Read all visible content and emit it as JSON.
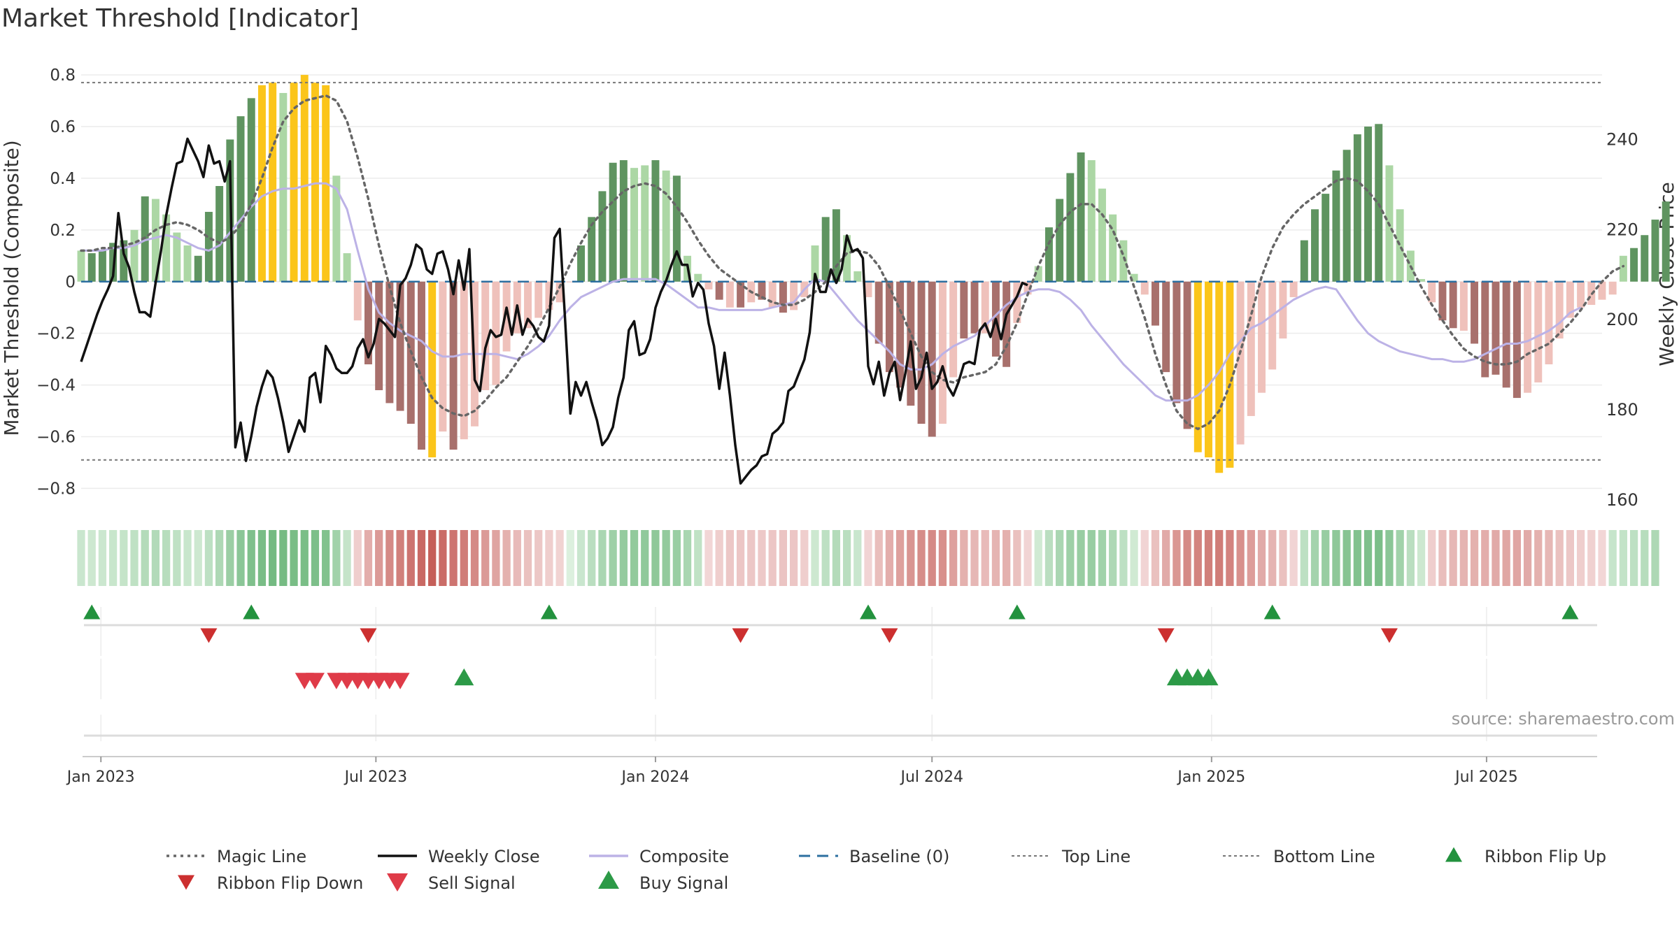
{
  "title": "Market Threshold [Indicator]",
  "source": "source: sharemaestro.com",
  "colors": {
    "bar_pos_strong": "#5f9460",
    "bar_pos_light": "#acd7a5",
    "bar_neg_strong": "#a8706c",
    "bar_neg_light": "#efc1bb",
    "bar_extreme": "#fbc51a",
    "close": "#111111",
    "composite": "#bcb2e6",
    "magic": "#666666",
    "baseline": "#2c6fa0",
    "threshold": "#777777",
    "flip_up": "#23923e",
    "flip_down": "#cc2f2f",
    "sell": "#df3b48",
    "buy": "#2c9a47",
    "grid": "#ececec",
    "axis_text": "#333333"
  },
  "chart_data": {
    "type": "bar",
    "title": "Market Threshold [Indicator]",
    "ylabel": "Market Threshold (Composite)",
    "y2label": "Weekly Close Price",
    "ylim": [
      -0.88,
      0.83
    ],
    "y2lim": [
      157.8,
      255.9
    ],
    "y_ticks": [
      0.8,
      0.6,
      0.4,
      0.2,
      0,
      -0.2,
      -0.4,
      -0.6,
      -0.8
    ],
    "y_tick_labels": [
      "0.8",
      "0.6",
      "0.4",
      "0.2",
      "0",
      "−0.2",
      "−0.4",
      "−0.6",
      "−0.8"
    ],
    "y2_ticks": [
      240,
      220,
      200,
      180,
      160
    ],
    "top_line": 0.77,
    "bottom_line": -0.69,
    "baseline": 0,
    "x_start": "2022-12-19",
    "x_end": "2025-09-15",
    "x_ticks": [
      {
        "date": "2023-01-01",
        "label": "Jan 2023"
      },
      {
        "date": "2023-07-01",
        "label": "Jul 2023"
      },
      {
        "date": "2024-01-01",
        "label": "Jan 2024"
      },
      {
        "date": "2024-07-01",
        "label": "Jul 2024"
      },
      {
        "date": "2025-01-01",
        "label": "Jan 2025"
      },
      {
        "date": "2025-07-01",
        "label": "Jul 2025"
      }
    ],
    "bar_values": [
      0.12,
      0.11,
      0.12,
      0.15,
      0.16,
      0.2,
      0.33,
      0.32,
      0.26,
      0.19,
      0.14,
      0.1,
      0.27,
      0.37,
      0.55,
      0.64,
      0.71,
      0.76,
      0.77,
      0.73,
      0.77,
      0.8,
      0.77,
      0.76,
      0.41,
      0.11,
      -0.15,
      -0.32,
      -0.42,
      -0.47,
      -0.5,
      -0.55,
      -0.65,
      -0.68,
      -0.58,
      -0.65,
      -0.61,
      -0.56,
      -0.42,
      -0.4,
      -0.27,
      -0.2,
      -0.18,
      -0.14,
      -0.11,
      -0.08,
      0.0,
      0.14,
      0.25,
      0.35,
      0.46,
      0.47,
      0.44,
      0.45,
      0.47,
      0.43,
      0.41,
      0.1,
      0.03,
      -0.03,
      -0.07,
      -0.1,
      -0.1,
      -0.08,
      -0.07,
      -0.1,
      -0.12,
      -0.11,
      -0.06,
      0.14,
      0.25,
      0.28,
      0.18,
      0.04,
      -0.06,
      -0.24,
      -0.35,
      -0.41,
      -0.48,
      -0.55,
      -0.6,
      -0.55,
      -0.37,
      -0.22,
      -0.2,
      -0.2,
      -0.29,
      -0.33,
      -0.16,
      -0.05,
      0.06,
      0.21,
      0.32,
      0.42,
      0.5,
      0.47,
      0.36,
      0.26,
      0.16,
      0.03,
      -0.05,
      -0.17,
      -0.35,
      -0.47,
      -0.57,
      -0.66,
      -0.68,
      -0.74,
      -0.72,
      -0.63,
      -0.52,
      -0.43,
      -0.34,
      -0.22,
      -0.06,
      0.16,
      0.28,
      0.34,
      0.43,
      0.51,
      0.57,
      0.6,
      0.61,
      0.45,
      0.28,
      0.12,
      0.01,
      -0.08,
      -0.15,
      -0.18,
      -0.19,
      -0.24,
      -0.37,
      -0.36,
      -0.41,
      -0.45,
      -0.43,
      -0.39,
      -0.32,
      -0.22,
      -0.14,
      -0.1,
      -0.09,
      -0.07,
      -0.05,
      0.1,
      0.13,
      0.18,
      0.24,
      0.31
    ],
    "bar_colors": [
      "bar_pos_light",
      "bar_pos_strong",
      "bar_pos_strong",
      "bar_pos_strong",
      "bar_pos_strong",
      "bar_pos_light",
      "bar_pos_strong",
      "bar_pos_light",
      "bar_pos_light",
      "bar_pos_light",
      "bar_pos_light",
      "bar_pos_strong",
      "bar_pos_strong",
      "bar_pos_strong",
      "bar_pos_strong",
      "bar_pos_strong",
      "bar_pos_strong",
      "bar_extreme",
      "bar_extreme",
      "bar_pos_light",
      "bar_extreme",
      "bar_extreme",
      "bar_extreme",
      "bar_extreme",
      "bar_pos_light",
      "bar_pos_light",
      "bar_neg_light",
      "bar_neg_strong",
      "bar_neg_strong",
      "bar_neg_strong",
      "bar_neg_strong",
      "bar_neg_strong",
      "bar_neg_strong",
      "bar_extreme",
      "bar_neg_light",
      "bar_neg_strong",
      "bar_neg_light",
      "bar_neg_light",
      "bar_neg_light",
      "bar_neg_light",
      "bar_neg_light",
      "bar_neg_light",
      "bar_neg_light",
      "bar_neg_light",
      "bar_neg_light",
      "bar_neg_light",
      "bar_neg_light",
      "bar_pos_strong",
      "bar_pos_strong",
      "bar_pos_strong",
      "bar_pos_strong",
      "bar_pos_strong",
      "bar_pos_light",
      "bar_pos_light",
      "bar_pos_strong",
      "bar_pos_light",
      "bar_pos_strong",
      "bar_pos_light",
      "bar_pos_light",
      "bar_neg_light",
      "bar_neg_strong",
      "bar_neg_light",
      "bar_neg_strong",
      "bar_neg_light",
      "bar_neg_strong",
      "bar_neg_light",
      "bar_neg_strong",
      "bar_neg_light",
      "bar_neg_light",
      "bar_pos_light",
      "bar_pos_strong",
      "bar_pos_strong",
      "bar_pos_light",
      "bar_pos_light",
      "bar_neg_light",
      "bar_neg_strong",
      "bar_neg_strong",
      "bar_neg_strong",
      "bar_neg_strong",
      "bar_neg_strong",
      "bar_neg_strong",
      "bar_neg_light",
      "bar_neg_light",
      "bar_neg_strong",
      "bar_neg_strong",
      "bar_neg_light",
      "bar_neg_strong",
      "bar_neg_strong",
      "bar_neg_light",
      "bar_neg_light",
      "bar_pos_light",
      "bar_pos_strong",
      "bar_pos_strong",
      "bar_pos_strong",
      "bar_pos_strong",
      "bar_pos_light",
      "bar_pos_light",
      "bar_pos_light",
      "bar_pos_light",
      "bar_pos_light",
      "bar_neg_light",
      "bar_neg_strong",
      "bar_neg_strong",
      "bar_neg_strong",
      "bar_neg_strong",
      "bar_extreme",
      "bar_extreme",
      "bar_extreme",
      "bar_extreme",
      "bar_neg_light",
      "bar_neg_light",
      "bar_neg_light",
      "bar_neg_light",
      "bar_neg_light",
      "bar_neg_light",
      "bar_pos_strong",
      "bar_pos_strong",
      "bar_pos_strong",
      "bar_pos_strong",
      "bar_pos_strong",
      "bar_pos_strong",
      "bar_pos_strong",
      "bar_pos_strong",
      "bar_pos_light",
      "bar_pos_light",
      "bar_pos_light",
      "bar_pos_light",
      "bar_neg_light",
      "bar_neg_strong",
      "bar_neg_strong",
      "bar_neg_light",
      "bar_neg_strong",
      "bar_neg_strong",
      "bar_neg_strong",
      "bar_neg_strong",
      "bar_neg_strong",
      "bar_neg_light",
      "bar_neg_light",
      "bar_neg_light",
      "bar_neg_light",
      "bar_neg_light",
      "bar_neg_light",
      "bar_neg_light",
      "bar_neg_light",
      "bar_neg_light",
      "bar_pos_light",
      "bar_pos_strong",
      "bar_pos_strong",
      "bar_pos_strong",
      "bar_pos_strong"
    ],
    "ribbon": [
      0.12,
      0.1,
      0.11,
      0.13,
      0.15,
      0.19,
      0.26,
      0.27,
      0.24,
      0.19,
      0.13,
      0.1,
      0.2,
      0.3,
      0.42,
      0.52,
      0.6,
      0.64,
      0.67,
      0.66,
      0.64,
      0.63,
      0.61,
      0.58,
      0.38,
      0.15,
      -0.1,
      -0.3,
      -0.42,
      -0.52,
      -0.58,
      -0.65,
      -0.72,
      -0.78,
      -0.7,
      -0.65,
      -0.6,
      -0.52,
      -0.42,
      -0.36,
      -0.28,
      -0.22,
      -0.18,
      -0.14,
      -0.1,
      -0.07,
      0.0,
      0.12,
      0.22,
      0.32,
      0.4,
      0.46,
      0.48,
      0.49,
      0.5,
      0.47,
      0.43,
      0.33,
      0.18,
      -0.05,
      -0.1,
      -0.14,
      -0.15,
      -0.14,
      -0.13,
      -0.15,
      -0.16,
      -0.15,
      -0.1,
      0.1,
      0.2,
      0.26,
      0.22,
      0.12,
      -0.06,
      -0.2,
      -0.3,
      -0.38,
      -0.45,
      -0.5,
      -0.52,
      -0.48,
      -0.38,
      -0.28,
      -0.24,
      -0.22,
      -0.26,
      -0.28,
      -0.18,
      -0.06,
      0.08,
      0.22,
      0.32,
      0.4,
      0.44,
      0.44,
      0.38,
      0.3,
      0.2,
      0.08,
      -0.06,
      -0.18,
      -0.32,
      -0.44,
      -0.52,
      -0.56,
      -0.58,
      -0.6,
      -0.56,
      -0.48,
      -0.4,
      -0.32,
      -0.26,
      -0.18,
      -0.06,
      0.2,
      0.36,
      0.44,
      0.5,
      0.55,
      0.58,
      0.6,
      0.62,
      0.52,
      0.38,
      0.22,
      0.1,
      -0.1,
      -0.2,
      -0.24,
      -0.26,
      -0.28,
      -0.3,
      -0.32,
      -0.34,
      -0.35,
      -0.32,
      -0.28,
      -0.24,
      -0.18,
      -0.14,
      -0.1,
      -0.08,
      -0.05,
      0.14,
      0.16,
      0.2,
      0.24,
      0.3
    ],
    "close": [
      190.5,
      194,
      197.5,
      201,
      204,
      206.5,
      209.5,
      223.5,
      214.5,
      211.5,
      206,
      201.5,
      201.5,
      200.5,
      208,
      215,
      223,
      229,
      234.5,
      235,
      240,
      237.5,
      235,
      231.5,
      238.5,
      234.5,
      235,
      230.5,
      235,
      171.5,
      177,
      168.5,
      174,
      180.5,
      185,
      188.5,
      187,
      182.5,
      177,
      170.5,
      174,
      177.5,
      175,
      187,
      188,
      181.5,
      194,
      192,
      189,
      188,
      188,
      189.5,
      193.5,
      195.5,
      191.5,
      194.5,
      200,
      199,
      197.5,
      196,
      207.5,
      209,
      212,
      216.5,
      215.5,
      211,
      210,
      214.5,
      215,
      211,
      205.5,
      213,
      206.5,
      215.5,
      186.5,
      184,
      193.5,
      197.5,
      196,
      196.5,
      202.5,
      196.5,
      203,
      196.5,
      200,
      198.5,
      196,
      195,
      198.5,
      218,
      220,
      200,
      179,
      186,
      183,
      186,
      181.5,
      177.5,
      172,
      173.5,
      176,
      182.5,
      187,
      197.5,
      199.5,
      192,
      192.5,
      195.5,
      202.5,
      206,
      208.5,
      212,
      215,
      212,
      212,
      205,
      208,
      206.5,
      199,
      194,
      184.5,
      192.5,
      183,
      172,
      163.5,
      165,
      166.5,
      167.5,
      169.5,
      170,
      174.5,
      175.5,
      177,
      184,
      185,
      188,
      191,
      197,
      210,
      206,
      206,
      211,
      208,
      211,
      218.5,
      215,
      215.5,
      213.5,
      189.5,
      185.5,
      190.5,
      183,
      188,
      190.5,
      182,
      188,
      195,
      184.5,
      187,
      192.5,
      184.5,
      186,
      189.5,
      185,
      183,
      186,
      190,
      190.5,
      190,
      197.5,
      199,
      196,
      200,
      195.5,
      201,
      203,
      205,
      208,
      207.5
    ],
    "magic_line": [
      0.12,
      0.12,
      0.13,
      0.13,
      0.14,
      0.15,
      0.17,
      0.2,
      0.22,
      0.23,
      0.22,
      0.2,
      0.17,
      0.15,
      0.17,
      0.22,
      0.3,
      0.4,
      0.52,
      0.62,
      0.67,
      0.7,
      0.71,
      0.72,
      0.7,
      0.62,
      0.48,
      0.32,
      0.14,
      -0.02,
      -0.16,
      -0.27,
      -0.37,
      -0.45,
      -0.49,
      -0.51,
      -0.52,
      -0.5,
      -0.46,
      -0.41,
      -0.37,
      -0.31,
      -0.25,
      -0.18,
      -0.1,
      -0.02,
      0.07,
      0.15,
      0.22,
      0.27,
      0.31,
      0.35,
      0.37,
      0.38,
      0.37,
      0.34,
      0.29,
      0.23,
      0.16,
      0.1,
      0.05,
      0.02,
      -0.01,
      -0.04,
      -0.06,
      -0.08,
      -0.09,
      -0.09,
      -0.07,
      -0.04,
      0.0,
      0.06,
      0.11,
      0.12,
      0.11,
      0.06,
      -0.02,
      -0.11,
      -0.2,
      -0.29,
      -0.35,
      -0.38,
      -0.39,
      -0.37,
      -0.36,
      -0.35,
      -0.32,
      -0.25,
      -0.16,
      -0.05,
      0.06,
      0.15,
      0.22,
      0.27,
      0.3,
      0.3,
      0.26,
      0.2,
      0.1,
      -0.02,
      -0.14,
      -0.28,
      -0.4,
      -0.5,
      -0.55,
      -0.57,
      -0.55,
      -0.5,
      -0.4,
      -0.27,
      -0.13,
      0.02,
      0.13,
      0.21,
      0.26,
      0.3,
      0.33,
      0.36,
      0.39,
      0.4,
      0.39,
      0.35,
      0.3,
      0.22,
      0.14,
      0.06,
      -0.02,
      -0.09,
      -0.15,
      -0.21,
      -0.26,
      -0.29,
      -0.31,
      -0.32,
      -0.32,
      -0.31,
      -0.28,
      -0.26,
      -0.24,
      -0.2,
      -0.16,
      -0.11,
      -0.05,
      0.0,
      0.04,
      0.06
    ],
    "composite": [
      0.12,
      0.12,
      0.12,
      0.13,
      0.13,
      0.14,
      0.16,
      0.17,
      0.18,
      0.17,
      0.15,
      0.13,
      0.12,
      0.14,
      0.19,
      0.24,
      0.29,
      0.33,
      0.35,
      0.36,
      0.36,
      0.37,
      0.38,
      0.38,
      0.36,
      0.28,
      0.12,
      -0.03,
      -0.12,
      -0.16,
      -0.19,
      -0.21,
      -0.23,
      -0.27,
      -0.29,
      -0.29,
      -0.28,
      -0.28,
      -0.28,
      -0.28,
      -0.29,
      -0.3,
      -0.28,
      -0.25,
      -0.21,
      -0.15,
      -0.1,
      -0.06,
      -0.04,
      -0.02,
      0.0,
      0.01,
      0.01,
      0.01,
      0.01,
      -0.01,
      -0.04,
      -0.07,
      -0.1,
      -0.1,
      -0.11,
      -0.11,
      -0.11,
      -0.11,
      -0.11,
      -0.1,
      -0.09,
      -0.08,
      -0.03,
      0.01,
      0.0,
      -0.05,
      -0.1,
      -0.15,
      -0.19,
      -0.23,
      -0.27,
      -0.32,
      -0.34,
      -0.34,
      -0.32,
      -0.28,
      -0.25,
      -0.23,
      -0.21,
      -0.17,
      -0.13,
      -0.09,
      -0.06,
      -0.04,
      -0.03,
      -0.03,
      -0.04,
      -0.07,
      -0.11,
      -0.17,
      -0.22,
      -0.27,
      -0.32,
      -0.36,
      -0.4,
      -0.44,
      -0.46,
      -0.46,
      -0.46,
      -0.44,
      -0.4,
      -0.35,
      -0.28,
      -0.23,
      -0.18,
      -0.16,
      -0.13,
      -0.1,
      -0.07,
      -0.05,
      -0.03,
      -0.02,
      -0.03,
      -0.09,
      -0.15,
      -0.2,
      -0.23,
      -0.25,
      -0.27,
      -0.28,
      -0.29,
      -0.3,
      -0.3,
      -0.31,
      -0.31,
      -0.3,
      -0.28,
      -0.26,
      -0.24,
      -0.24,
      -0.23,
      -0.21,
      -0.19,
      -0.16,
      -0.12,
      -0.1
    ],
    "ribbon_flip_up_dates": [
      "2022-12-26",
      "2023-04-10",
      "2023-10-23",
      "2024-05-20",
      "2024-08-26",
      "2025-02-10",
      "2025-08-25"
    ],
    "ribbon_flip_down_dates": [
      "2023-03-13",
      "2023-06-26",
      "2024-02-26",
      "2024-06-03",
      "2024-12-02",
      "2025-04-28"
    ],
    "sell_signal_dates": [
      "2023-05-15",
      "2023-05-22",
      "2023-06-05",
      "2023-06-12",
      "2023-06-19",
      "2023-06-26",
      "2023-07-03",
      "2023-07-10",
      "2023-07-17"
    ],
    "buy_signal_dates": [
      "2023-08-28",
      "2024-12-09",
      "2024-12-16",
      "2024-12-23",
      "2024-12-30"
    ],
    "legend": [
      {
        "label": "Magic Line",
        "style": "dotted",
        "color": "magic"
      },
      {
        "label": "Weekly Close",
        "style": "solid",
        "color": "close"
      },
      {
        "label": "Composite",
        "style": "solid",
        "color": "composite"
      },
      {
        "label": "Baseline (0)",
        "style": "dashed",
        "color": "baseline"
      },
      {
        "label": "Top Line",
        "style": "dotted-thin",
        "color": "threshold"
      },
      {
        "label": "Bottom Line",
        "style": "dotted-thin",
        "color": "threshold"
      },
      {
        "label": "Ribbon Flip Up",
        "style": "tri-up",
        "color": "flip_up"
      },
      {
        "label": "Ribbon Flip Down",
        "style": "tri-down",
        "color": "flip_down"
      },
      {
        "label": "Sell Signal",
        "style": "tri-down-big",
        "color": "sell"
      },
      {
        "label": "Buy Signal",
        "style": "tri-up-big",
        "color": "buy"
      }
    ]
  }
}
